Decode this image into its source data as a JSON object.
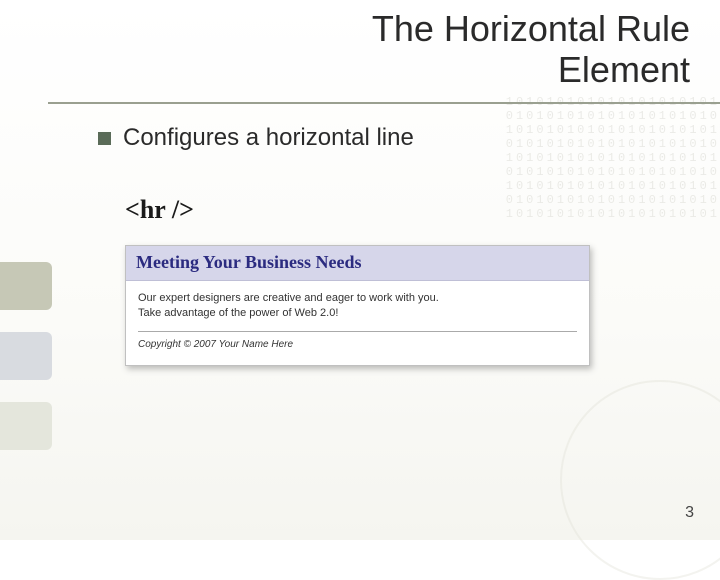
{
  "title": {
    "line1": "The Horizontal Rule",
    "line2": "Element"
  },
  "bullet": {
    "text": "Configures a horizontal line"
  },
  "code": {
    "text": "<hr />"
  },
  "example": {
    "heading": "Meeting Your Business Needs",
    "body_line1": "Our expert designers are creative and eager to work with you.",
    "body_line2": "Take advantage of the power of Web 2.0!",
    "copyright": "Copyright © 2007 Your Name Here"
  },
  "page_number": "3",
  "colors": {
    "bullet_square": "#5a6b58",
    "title_underline": "#9aa090",
    "example_header_bg": "#d6d6ea",
    "example_heading_color": "#2b2b80",
    "tab1": "#c6c8b6",
    "tab2": "#d8dbe0",
    "tab3": "#e4e6dc"
  },
  "binary_pattern": "101010101010101010101\n010101010101010101010\n101010101010101010101\n010101010101010101010\n101010101010101010101\n010101010101010101010\n101010101010101010101\n010101010101010101010\n101010101010101010101"
}
